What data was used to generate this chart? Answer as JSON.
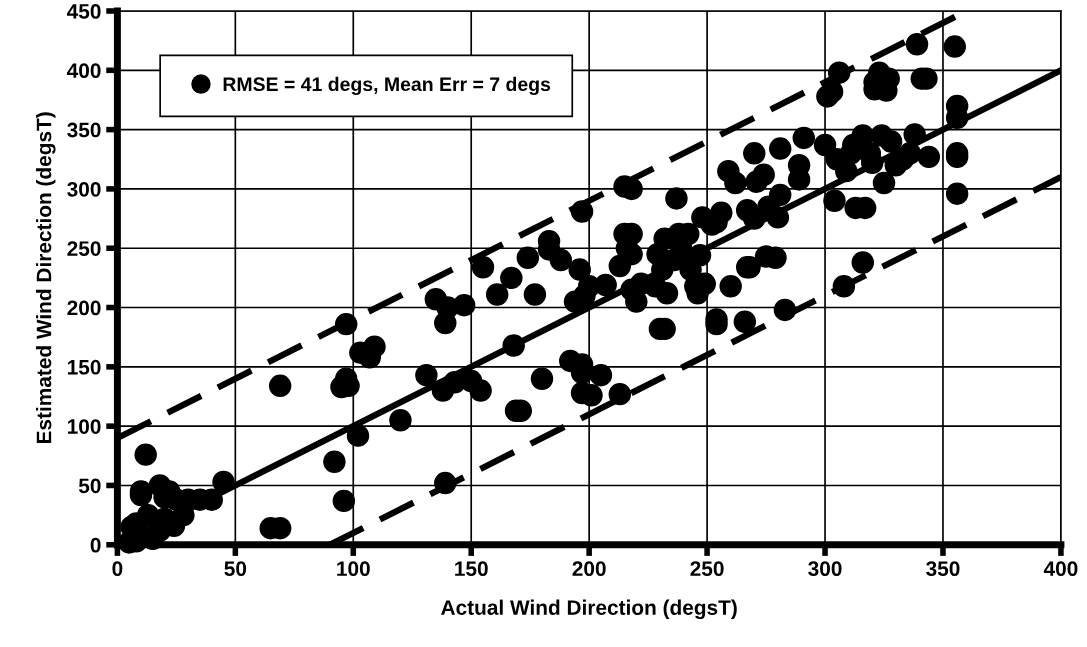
{
  "chart_data": {
    "type": "scatter",
    "xlabel": "Actual Wind Direction (degsT)",
    "ylabel": "Estimated Wind Direction (degsT)",
    "xlim": [
      0,
      400
    ],
    "ylim": [
      0,
      450
    ],
    "xticks": [
      0,
      50,
      100,
      150,
      200,
      250,
      300,
      350,
      400
    ],
    "yticks": [
      0,
      50,
      100,
      150,
      200,
      250,
      300,
      350,
      400,
      450
    ],
    "grid": true,
    "legend": "top left",
    "marker": "circle",
    "series": [
      {
        "name": "RMSE = 41 degs, Mean Err = 7 degs",
        "color": "#000000",
        "x": [
          6,
          8,
          10,
          10,
          12,
          13,
          18,
          18,
          20,
          22,
          24,
          25,
          28,
          30,
          35,
          40,
          45,
          8,
          15,
          20,
          5,
          65,
          69,
          69,
          92,
          95,
          96,
          97,
          97,
          98,
          102,
          103,
          107,
          109,
          120,
          131,
          135,
          138,
          139,
          139,
          140,
          143,
          147,
          150,
          154,
          155,
          161,
          167,
          168,
          169,
          171,
          174,
          177,
          180,
          183,
          183,
          188,
          192,
          194,
          196,
          197,
          197,
          197,
          197,
          198,
          200,
          201,
          205,
          207,
          213,
          213,
          215,
          215,
          216,
          218,
          218,
          218,
          220,
          218,
          222,
          228,
          229,
          230,
          231,
          232,
          232,
          233,
          236,
          237,
          238,
          239,
          242,
          243,
          245,
          246,
          247,
          248,
          249,
          252,
          254,
          254,
          254,
          256,
          259,
          260,
          262,
          266,
          267,
          267,
          268,
          270,
          270,
          271,
          274,
          275,
          276,
          279,
          280,
          281,
          281,
          283,
          289,
          289,
          291,
          300,
          301,
          303,
          304,
          305,
          306,
          308,
          309,
          311,
          312,
          313,
          316,
          316,
          317,
          319,
          320,
          321,
          321,
          323,
          324,
          325,
          326,
          327,
          328,
          330,
          333,
          336,
          338,
          339,
          341,
          343,
          344,
          355,
          356,
          356,
          356,
          356,
          356
        ],
        "values": [
          15,
          18,
          42,
          45,
          76,
          25,
          12,
          50,
          40,
          45,
          16,
          38,
          25,
          38,
          38,
          38,
          53,
          3,
          5,
          22,
          2,
          14,
          14,
          134,
          70,
          133,
          37,
          186,
          140,
          134,
          92,
          162,
          158,
          167,
          105,
          143,
          207,
          130,
          187,
          52,
          200,
          137,
          202,
          138,
          130,
          234,
          211,
          225,
          168,
          113,
          113,
          242,
          211,
          140,
          256,
          249,
          240,
          155,
          205,
          232,
          152,
          145,
          128,
          281,
          210,
          218,
          126,
          143,
          219,
          127,
          235,
          302,
          262,
          250,
          300,
          262,
          245,
          205,
          215,
          220,
          218,
          245,
          182,
          232,
          182,
          258,
          212,
          240,
          292,
          262,
          250,
          262,
          232,
          218,
          212,
          244,
          276,
          220,
          270,
          190,
          186,
          272,
          280,
          315,
          218,
          305,
          188,
          282,
          234,
          234,
          330,
          275,
          306,
          312,
          243,
          285,
          242,
          276,
          295,
          334,
          198,
          308,
          320,
          343,
          337,
          378,
          382,
          290,
          325,
          398,
          218,
          315,
          330,
          337,
          284,
          345,
          238,
          284,
          330,
          322,
          384,
          390,
          398,
          345,
          305,
          383,
          393,
          340,
          320,
          325,
          330,
          346,
          422,
          393,
          393,
          327,
          420,
          330,
          327,
          296,
          370,
          360
        ]
      },
      {
        "type": "line",
        "marker": "none",
        "color": "#000000",
        "line_style": "solid",
        "x": [
          0,
          400
        ],
        "values": [
          0,
          400
        ]
      },
      {
        "type": "line",
        "marker": "none",
        "color": "#000000",
        "line_style": "dashed",
        "x": [
          0,
          360
        ],
        "values": [
          90,
          450
        ]
      },
      {
        "type": "line",
        "marker": "none",
        "color": "#000000",
        "line_style": "dashed",
        "x": [
          90,
          400
        ],
        "values": [
          0,
          310
        ]
      }
    ]
  }
}
